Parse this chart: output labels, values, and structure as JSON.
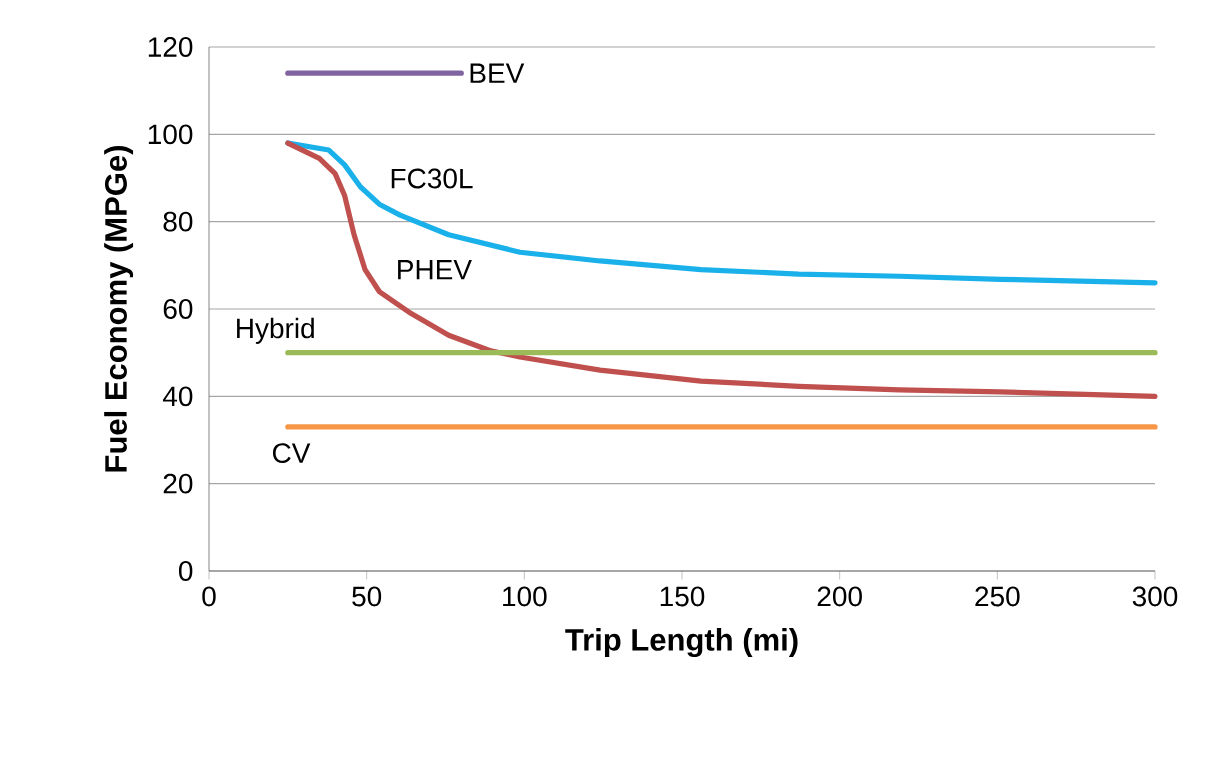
{
  "chart_data": {
    "type": "line",
    "xlabel": "Trip Length (mi)",
    "ylabel": "Fuel Economy (MPGe)",
    "xlim": [
      0,
      300
    ],
    "ylim": [
      0,
      120
    ],
    "xticks": [
      0,
      50,
      100,
      150,
      200,
      250,
      300
    ],
    "yticks": [
      0,
      20,
      40,
      60,
      80,
      100,
      120
    ],
    "grid": "y",
    "marker": "none",
    "series": [
      {
        "name": "BEV",
        "color": "#8064a2",
        "x": [
          25,
          80
        ],
        "values": [
          114,
          114
        ]
      },
      {
        "name": "FC30L",
        "color": "#1ab0ea",
        "x": [
          25,
          38,
          43,
          48,
          54,
          60.6,
          76,
          98.6,
          124,
          156,
          187,
          219,
          251,
          300
        ],
        "values": [
          98,
          96.4,
          93,
          88,
          84,
          81.5,
          77,
          73,
          71,
          69,
          68,
          67.5,
          66.8,
          66
        ]
      },
      {
        "name": "PHEV",
        "color": "#c0504d",
        "x": [
          25,
          35,
          40,
          43,
          46,
          49.5,
          54,
          64,
          76,
          89,
          98.6,
          124,
          156,
          187,
          219,
          251,
          300
        ],
        "values": [
          98,
          94.5,
          91,
          86,
          77,
          69,
          64,
          59,
          54,
          50.5,
          49,
          46,
          43.5,
          42.3,
          41.5,
          41,
          40
        ]
      },
      {
        "name": "Hybrid",
        "color": "#9bbb59",
        "x": [
          25,
          300
        ],
        "values": [
          50,
          50
        ]
      },
      {
        "name": "CV",
        "color": "#f79646",
        "x": [
          25,
          300
        ],
        "values": [
          33,
          33
        ]
      }
    ]
  }
}
